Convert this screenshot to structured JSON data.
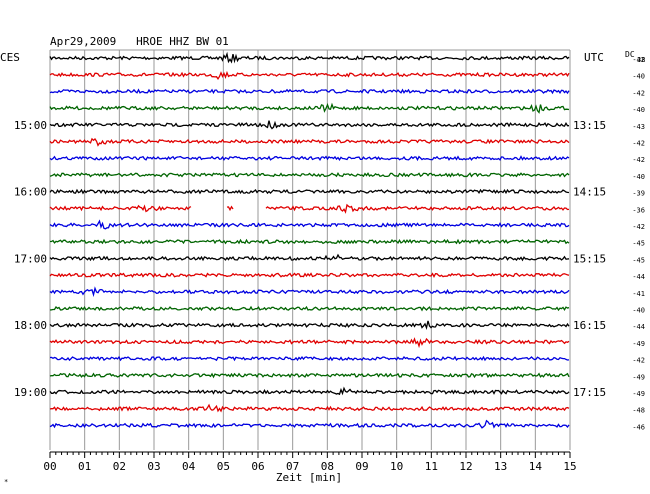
{
  "header": {
    "title": "Apr29,2009   HROE HHZ BW 01",
    "left_tz": "CES",
    "right_tz": "UTC",
    "dc_label": "DC",
    "dc_sub": "38"
  },
  "chart_data": {
    "type": "line",
    "title": "Apr29,2009   HROE HHZ BW 01",
    "xlabel": "Zeit [min]",
    "ylabel": "",
    "xlim": [
      0,
      15
    ],
    "x_ticks": [
      "00",
      "01",
      "02",
      "03",
      "04",
      "05",
      "06",
      "07",
      "08",
      "09",
      "10",
      "11",
      "12",
      "13",
      "14",
      "15"
    ],
    "grid": true,
    "left_time_labels": [
      {
        "row": 4,
        "label": "15:00"
      },
      {
        "row": 8,
        "label": "16:00"
      },
      {
        "row": 12,
        "label": "17:00"
      },
      {
        "row": 16,
        "label": "18:00"
      },
      {
        "row": 20,
        "label": "19:00"
      }
    ],
    "right_time_labels": [
      {
        "row": 4,
        "label": "13:15"
      },
      {
        "row": 8,
        "label": "14:15"
      },
      {
        "row": 12,
        "label": "15:15"
      },
      {
        "row": 16,
        "label": "16:15"
      },
      {
        "row": 20,
        "label": "17:15"
      }
    ],
    "trace_colors": [
      "#000000",
      "#e00000",
      "#0000e0",
      "#006400"
    ],
    "dc_offsets": [
      "-42",
      "-40",
      "-42",
      "-40",
      "-43",
      "-42",
      "-42",
      "-40",
      "-39",
      "-36",
      "-42",
      "-45",
      "-45",
      "-44",
      "-41",
      "-40",
      "-44",
      "-49",
      "-42",
      "-49",
      "-49",
      "-48",
      "-46"
    ],
    "gaps": [
      {
        "row": 9,
        "from_min": 4.1,
        "to_min": 5.1
      },
      {
        "row": 9,
        "from_min": 5.3,
        "to_min": 6.2
      }
    ],
    "events": [
      {
        "row": 0,
        "at_min": 5.2
      },
      {
        "row": 1,
        "at_min": 4.9
      },
      {
        "row": 3,
        "at_min": 8.0
      },
      {
        "row": 3,
        "at_min": 14.1
      },
      {
        "row": 4,
        "at_min": 6.3
      },
      {
        "row": 5,
        "at_min": 1.4
      },
      {
        "row": 9,
        "at_min": 2.8
      },
      {
        "row": 9,
        "at_min": 8.6
      },
      {
        "row": 10,
        "at_min": 1.5
      },
      {
        "row": 12,
        "at_min": 8.2
      },
      {
        "row": 14,
        "at_min": 1.2
      },
      {
        "row": 16,
        "at_min": 10.9
      },
      {
        "row": 17,
        "at_min": 10.7
      },
      {
        "row": 20,
        "at_min": 8.4
      },
      {
        "row": 21,
        "at_min": 4.7
      },
      {
        "row": 22,
        "at_min": 12.6
      }
    ]
  }
}
